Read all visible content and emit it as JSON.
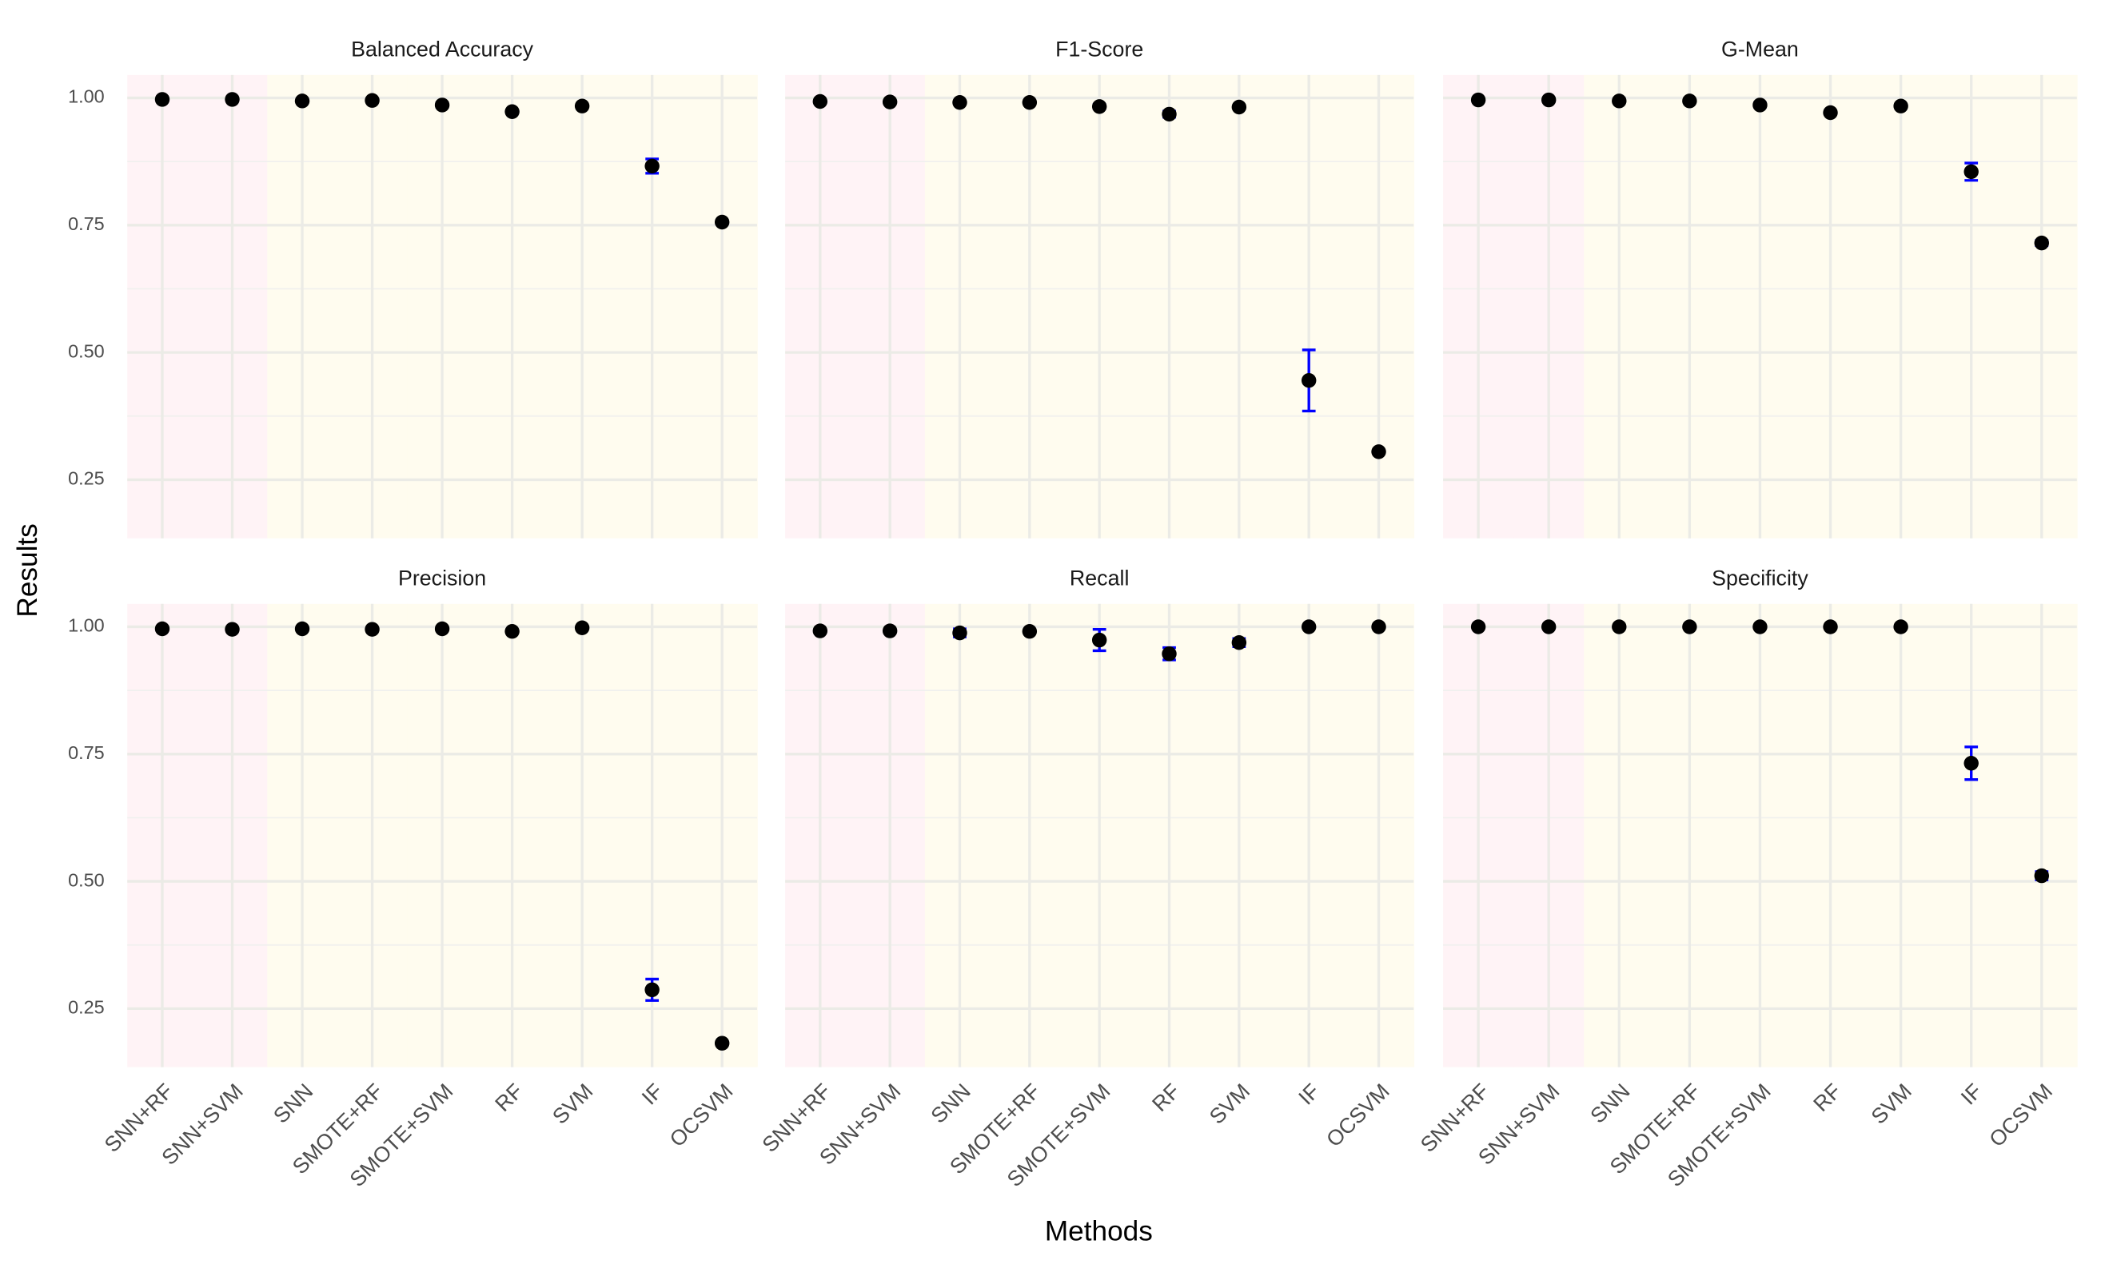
{
  "xlabel": "Methods",
  "ylabel": "Results",
  "chart_data": [
    {
      "type": "dot",
      "title": "Balanced Accuracy",
      "categories": [
        "SNN+RF",
        "SNN+SVM",
        "SNN",
        "SMOTE+RF",
        "SMOTE+SVM",
        "RF",
        "SVM",
        "IF",
        "OCSVM"
      ],
      "values": [
        0.997,
        0.997,
        0.994,
        0.995,
        0.986,
        0.973,
        0.984,
        0.866,
        0.756
      ],
      "errors": [
        0.002,
        0.002,
        0.002,
        0.002,
        0.004,
        0.003,
        0.002,
        0.014,
        0.003
      ],
      "ylim": [
        0.135,
        1.045
      ],
      "yticks": [
        {
          "value": 0.25,
          "label": "0.25"
        },
        {
          "value": 0.5,
          "label": "0.50"
        },
        {
          "value": 0.75,
          "label": "0.75"
        },
        {
          "value": 1,
          "label": "1.00"
        }
      ],
      "color": "#000000",
      "error_color": "#0000ff",
      "grid": true,
      "category_backgrounds": [
        "#fff3f6",
        "#fff3f6",
        "#fffcef",
        "#fffcef",
        "#fffcef",
        "#fffcef",
        "#fffcef",
        "#fffcef",
        "#fffcef"
      ]
    },
    {
      "type": "dot",
      "title": "F1-Score",
      "categories": [
        "SNN+RF",
        "SNN+SVM",
        "SNN",
        "SMOTE+RF",
        "SMOTE+SVM",
        "RF",
        "SVM",
        "IF",
        "OCSVM"
      ],
      "values": [
        0.993,
        0.992,
        0.991,
        0.991,
        0.983,
        0.968,
        0.982,
        0.445,
        0.305
      ],
      "errors": [
        0.002,
        0.002,
        0.002,
        0.002,
        0.004,
        0.006,
        0.003,
        0.06,
        0.003
      ],
      "ylim": [
        0.135,
        1.045
      ],
      "yticks": [
        {
          "value": 0.25,
          "label": "0.25"
        },
        {
          "value": 0.5,
          "label": "0.50"
        },
        {
          "value": 0.75,
          "label": "0.75"
        },
        {
          "value": 1,
          "label": "1.00"
        }
      ],
      "color": "#000000",
      "error_color": "#0000ff",
      "grid": true,
      "category_backgrounds": [
        "#fff3f6",
        "#fff3f6",
        "#fffcef",
        "#fffcef",
        "#fffcef",
        "#fffcef",
        "#fffcef",
        "#fffcef",
        "#fffcef"
      ]
    },
    {
      "type": "dot",
      "title": "G-Mean",
      "categories": [
        "SNN+RF",
        "SNN+SVM",
        "SNN",
        "SMOTE+RF",
        "SMOTE+SVM",
        "RF",
        "SVM",
        "IF",
        "OCSVM"
      ],
      "values": [
        0.996,
        0.996,
        0.994,
        0.994,
        0.986,
        0.971,
        0.984,
        0.855,
        0.715
      ],
      "errors": [
        0.002,
        0.002,
        0.002,
        0.002,
        0.004,
        0.003,
        0.002,
        0.017,
        0.005
      ],
      "ylim": [
        0.135,
        1.045
      ],
      "yticks": [
        {
          "value": 0.25,
          "label": "0.25"
        },
        {
          "value": 0.5,
          "label": "0.50"
        },
        {
          "value": 0.75,
          "label": "0.75"
        },
        {
          "value": 1,
          "label": "1.00"
        }
      ],
      "color": "#000000",
      "error_color": "#0000ff",
      "grid": true,
      "category_backgrounds": [
        "#fff3f6",
        "#fff3f6",
        "#fffcef",
        "#fffcef",
        "#fffcef",
        "#fffcef",
        "#fffcef",
        "#fffcef",
        "#fffcef"
      ]
    },
    {
      "type": "dot",
      "title": "Precision",
      "categories": [
        "SNN+RF",
        "SNN+SVM",
        "SNN",
        "SMOTE+RF",
        "SMOTE+SVM",
        "RF",
        "SVM",
        "IF",
        "OCSVM"
      ],
      "values": [
        0.996,
        0.995,
        0.996,
        0.995,
        0.996,
        0.991,
        0.998,
        0.287,
        0.182
      ],
      "errors": [
        0.002,
        0.002,
        0.002,
        0.002,
        0.002,
        0.003,
        0.001,
        0.021,
        0.003
      ],
      "ylim": [
        0.135,
        1.045
      ],
      "yticks": [
        {
          "value": 0.25,
          "label": "0.25"
        },
        {
          "value": 0.5,
          "label": "0.50"
        },
        {
          "value": 0.75,
          "label": "0.75"
        },
        {
          "value": 1,
          "label": "1.00"
        }
      ],
      "color": "#000000",
      "error_color": "#0000ff",
      "grid": true,
      "category_backgrounds": [
        "#fff3f6",
        "#fff3f6",
        "#fffcef",
        "#fffcef",
        "#fffcef",
        "#fffcef",
        "#fffcef",
        "#fffcef",
        "#fffcef"
      ]
    },
    {
      "type": "dot",
      "title": "Recall",
      "categories": [
        "SNN+RF",
        "SNN+SVM",
        "SNN",
        "SMOTE+RF",
        "SMOTE+SVM",
        "RF",
        "SVM",
        "IF",
        "OCSVM"
      ],
      "values": [
        0.992,
        0.992,
        0.988,
        0.991,
        0.974,
        0.947,
        0.969,
        1,
        1
      ],
      "errors": [
        0.002,
        0.002,
        0.008,
        0.002,
        0.021,
        0.012,
        0.008,
        0.001,
        0.001
      ],
      "ylim": [
        0.135,
        1.045
      ],
      "yticks": [
        {
          "value": 0.25,
          "label": "0.25"
        },
        {
          "value": 0.5,
          "label": "0.50"
        },
        {
          "value": 0.75,
          "label": "0.75"
        },
        {
          "value": 1,
          "label": "1.00"
        }
      ],
      "color": "#000000",
      "error_color": "#0000ff",
      "grid": true,
      "category_backgrounds": [
        "#fff3f6",
        "#fff3f6",
        "#fffcef",
        "#fffcef",
        "#fffcef",
        "#fffcef",
        "#fffcef",
        "#fffcef",
        "#fffcef"
      ]
    },
    {
      "type": "dot",
      "title": "Specificity",
      "categories": [
        "SNN+RF",
        "SNN+SVM",
        "SNN",
        "SMOTE+RF",
        "SMOTE+SVM",
        "RF",
        "SVM",
        "IF",
        "OCSVM"
      ],
      "values": [
        1,
        1,
        1,
        1,
        1,
        1,
        1,
        0.732,
        0.511
      ],
      "errors": [
        0.001,
        0.001,
        0.001,
        0.001,
        0.001,
        0.001,
        0.001,
        0.032,
        0.008
      ],
      "ylim": [
        0.135,
        1.045
      ],
      "yticks": [
        {
          "value": 0.25,
          "label": "0.25"
        },
        {
          "value": 0.5,
          "label": "0.50"
        },
        {
          "value": 0.75,
          "label": "0.75"
        },
        {
          "value": 1,
          "label": "1.00"
        }
      ],
      "color": "#000000",
      "error_color": "#0000ff",
      "grid": true,
      "category_backgrounds": [
        "#fff3f6",
        "#fff3f6",
        "#fffcef",
        "#fffcef",
        "#fffcef",
        "#fffcef",
        "#fffcef",
        "#fffcef",
        "#fffcef"
      ]
    }
  ]
}
